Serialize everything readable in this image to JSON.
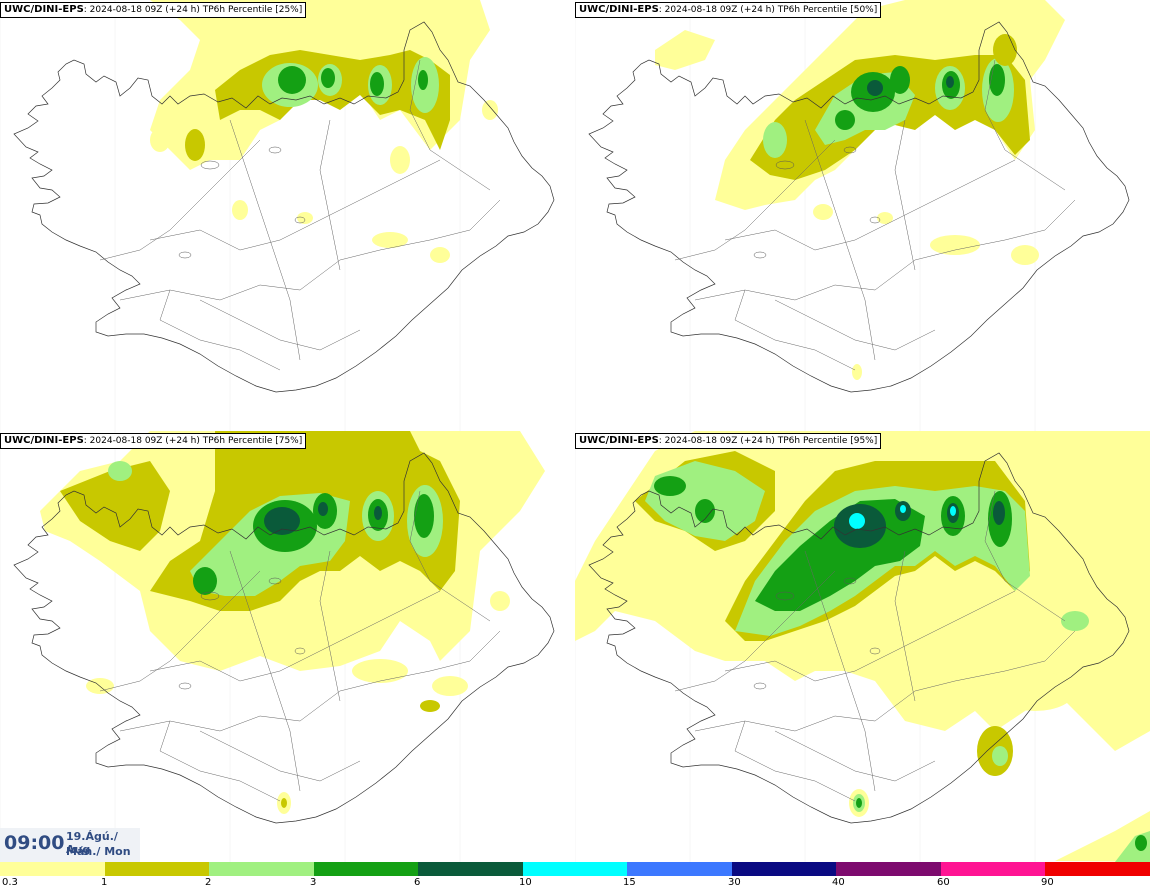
{
  "panels": [
    {
      "label_bold": "UWC/DINI-EPS",
      "label_rest": ": 2024-08-18 09Z (+24 h) TP6h Percentile [25%]",
      "percentile": 25
    },
    {
      "label_bold": "UWC/DINI-EPS",
      "label_rest": ": 2024-08-18 09Z (+24 h) TP6h Percentile [50%]",
      "percentile": 50
    },
    {
      "label_bold": "UWC/DINI-EPS",
      "label_rest": ": 2024-08-18 09Z (+24 h) TP6h Percentile [75%]",
      "percentile": 75
    },
    {
      "label_bold": "UWC/DINI-EPS",
      "label_rest": ": 2024-08-18 09Z (+24 h) TP6h Percentile [95%]",
      "percentile": 95
    }
  ],
  "clock": {
    "time": "09:00",
    "date_line1": "19.Ágú./ Aug",
    "date_line2": "Mán./ Mon"
  },
  "colorbar": {
    "ticks": [
      "0.3",
      "1",
      "2",
      "3",
      "6",
      "10",
      "15",
      "30",
      "40",
      "60",
      "90"
    ],
    "colors": [
      "#ffff99",
      "#c8c800",
      "#a0f080",
      "#14a014",
      "#0a5a3a",
      "#00ffff",
      "#3c78ff",
      "#0a0a82",
      "#7d0a6e",
      "#ff1493",
      "#f00000"
    ]
  }
}
